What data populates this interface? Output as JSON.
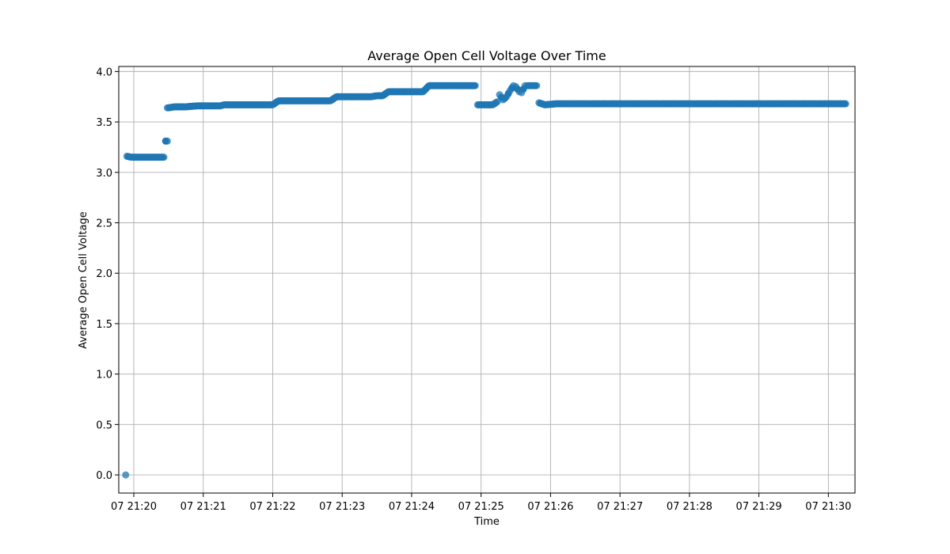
{
  "chart_data": {
    "type": "scatter",
    "title": "Average Open Cell Voltage Over Time",
    "xlabel": "Time",
    "ylabel": "Average Open Cell Voltage",
    "x_ticks": [
      "07 21:20",
      "07 21:21",
      "07 21:22",
      "07 21:23",
      "07 21:24",
      "07 21:25",
      "07 21:26",
      "07 21:27",
      "07 21:28",
      "07 21:29",
      "07 21:30"
    ],
    "y_ticks": [
      "0.0",
      "0.5",
      "1.0",
      "1.5",
      "2.0",
      "2.5",
      "3.0",
      "3.5",
      "4.0"
    ],
    "xlim": [
      "21:19:47",
      "21:30:23"
    ],
    "ylim": [
      -0.18,
      4.05
    ],
    "grid": true,
    "marker_color": "#1f77b4",
    "series": [
      {
        "x": [
          "21:19:53",
          "21:19:54",
          "21:19:58",
          "21:20:05",
          "21:20:12",
          "21:20:19",
          "21:20:26",
          "21:20:29",
          "21:20:29",
          "21:20:30",
          "21:20:35",
          "21:20:45",
          "21:20:55",
          "21:21:05",
          "21:21:15",
          "21:21:18",
          "21:21:25",
          "21:21:35",
          "21:21:45",
          "21:21:55",
          "21:22:00",
          "21:22:05",
          "21:22:15",
          "21:22:25",
          "21:22:35",
          "21:22:45",
          "21:22:50",
          "21:22:55",
          "21:23:05",
          "21:23:15",
          "21:23:25",
          "21:23:30",
          "21:23:35",
          "21:23:40",
          "21:23:50",
          "21:24:00",
          "21:24:10",
          "21:24:15",
          "21:24:25",
          "21:24:35",
          "21:24:45",
          "21:24:55",
          "21:24:57",
          "21:25:02",
          "21:25:10",
          "21:25:14",
          "21:25:16",
          "21:25:19",
          "21:25:22",
          "21:25:25",
          "21:25:28",
          "21:25:30",
          "21:25:33",
          "21:25:35",
          "21:25:38",
          "21:25:40",
          "21:25:44",
          "21:25:48",
          "21:25:50",
          "21:25:55",
          "21:26:05",
          "21:26:20",
          "21:26:35",
          "21:26:50",
          "21:27:05",
          "21:27:20",
          "21:27:35",
          "21:27:50",
          "21:28:05",
          "21:28:20",
          "21:28:35",
          "21:28:50",
          "21:29:05",
          "21:29:20",
          "21:29:35",
          "21:29:50",
          "21:30:05",
          "21:30:15"
        ],
        "y": [
          0.0,
          3.16,
          3.15,
          3.15,
          3.15,
          3.15,
          3.15,
          3.31,
          3.64,
          3.64,
          3.65,
          3.65,
          3.66,
          3.66,
          3.66,
          3.67,
          3.67,
          3.67,
          3.67,
          3.67,
          3.67,
          3.71,
          3.71,
          3.71,
          3.71,
          3.71,
          3.71,
          3.75,
          3.75,
          3.75,
          3.75,
          3.76,
          3.76,
          3.8,
          3.8,
          3.8,
          3.8,
          3.86,
          3.86,
          3.86,
          3.86,
          3.86,
          3.67,
          3.67,
          3.67,
          3.7,
          3.77,
          3.72,
          3.75,
          3.81,
          3.86,
          3.85,
          3.8,
          3.79,
          3.86,
          3.86,
          3.86,
          3.86,
          3.69,
          3.67,
          3.68,
          3.68,
          3.68,
          3.68,
          3.68,
          3.68,
          3.68,
          3.68,
          3.68,
          3.68,
          3.68,
          3.68,
          3.68,
          3.68,
          3.68,
          3.68,
          3.68,
          3.68
        ]
      }
    ]
  }
}
